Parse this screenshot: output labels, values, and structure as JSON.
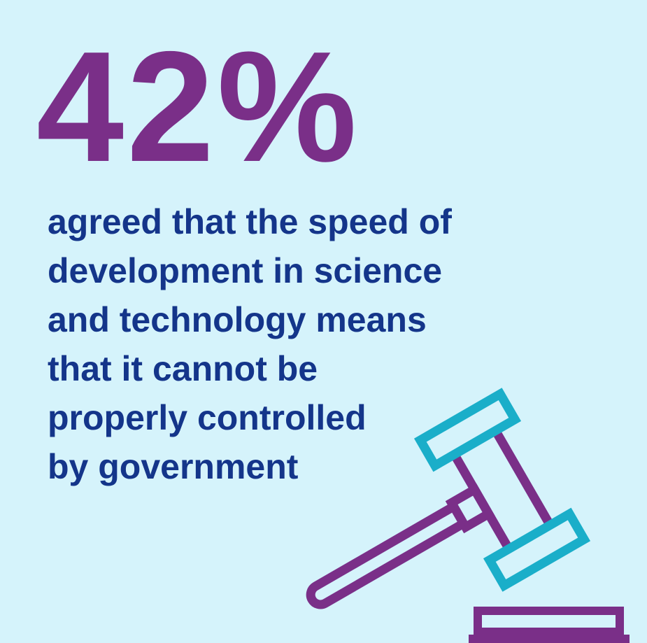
{
  "stat": "42%",
  "caption_lines": [
    "agreed that the speed of",
    "development in science",
    "and technology means",
    "that it cannot be",
    "properly controlled",
    "by government"
  ]
}
